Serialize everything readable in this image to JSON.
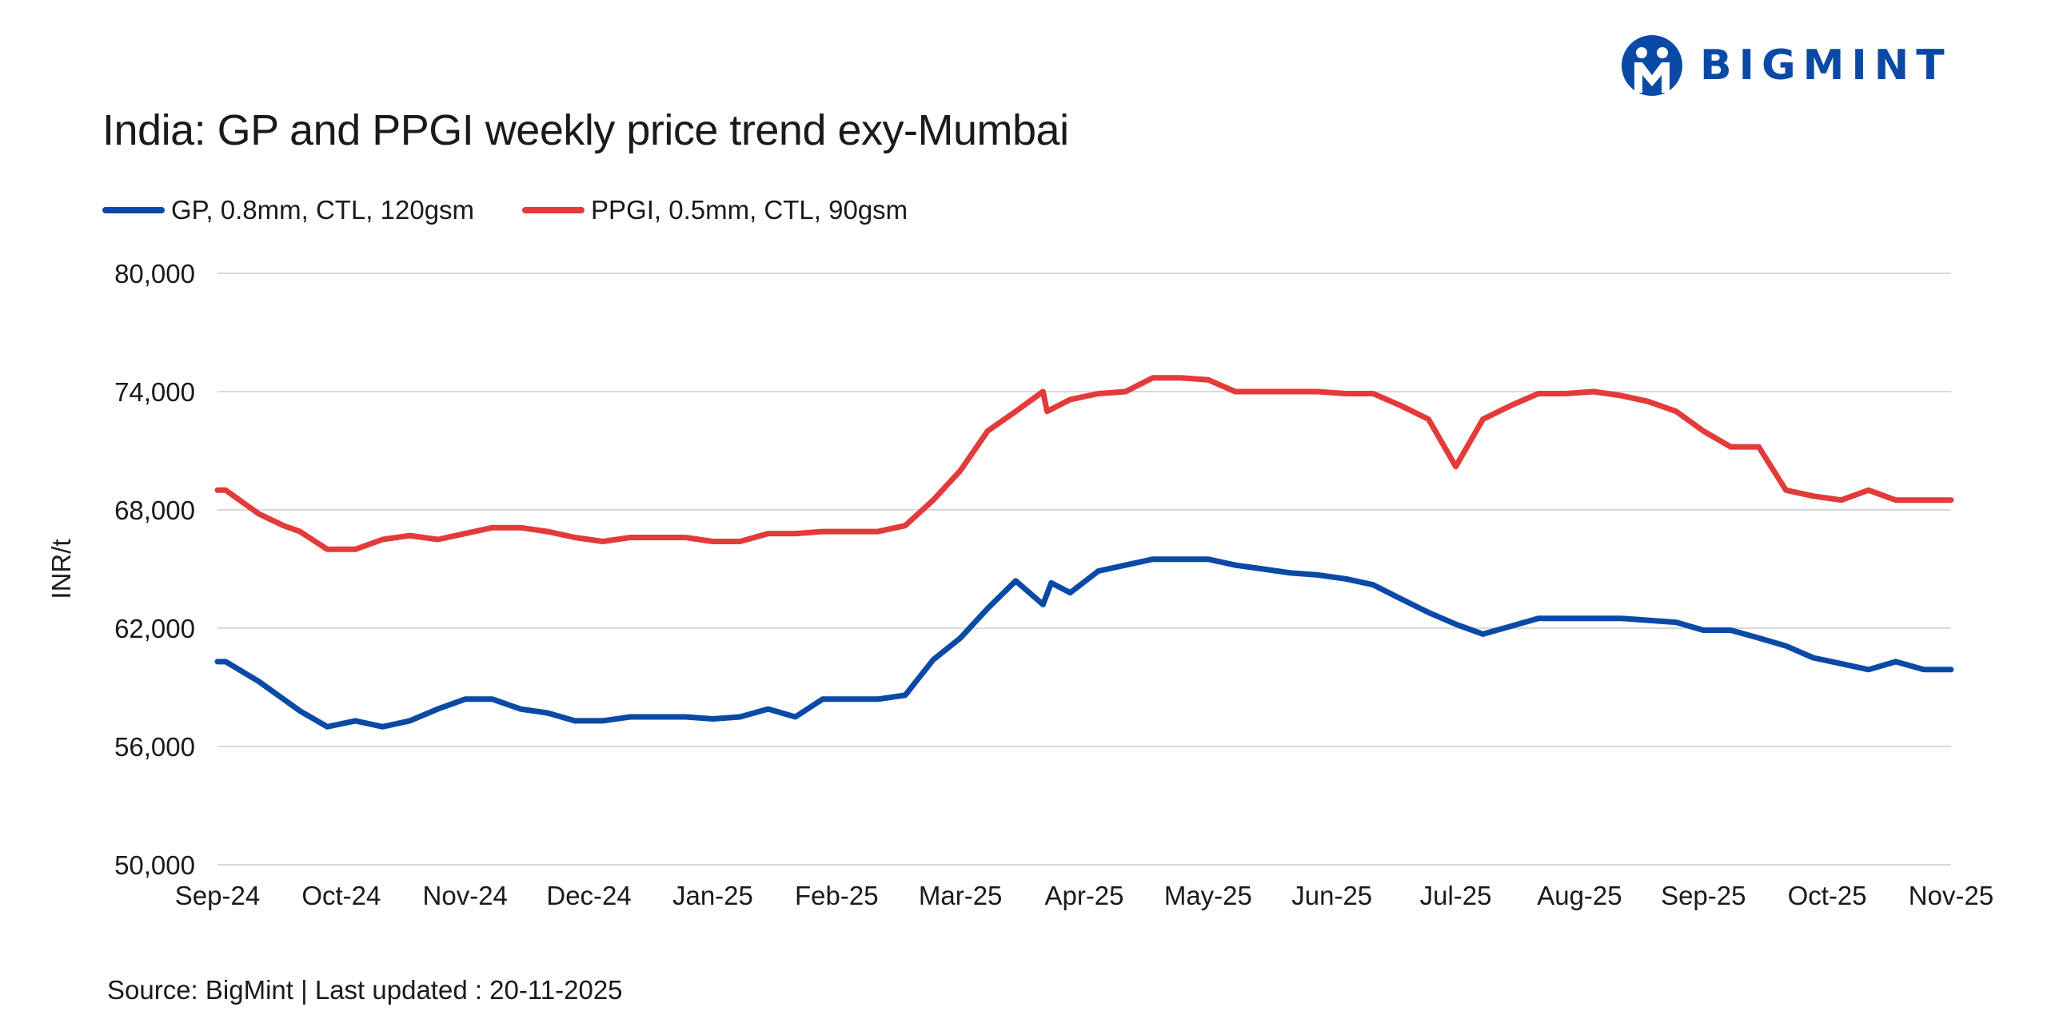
{
  "brand": {
    "name": "BIGMINT",
    "color": "#0a4aa6"
  },
  "footer": {
    "source": "Source: BigMint | Last updated : 20-11-2025"
  },
  "chart_data": {
    "type": "line",
    "title": "India: GP and PPGI weekly price trend exy-Mumbai",
    "ylabel": "INR/t",
    "xlabel": "",
    "ylim": [
      50000,
      80000
    ],
    "yticks": [
      50000,
      56000,
      62000,
      68000,
      74000,
      80000
    ],
    "ytick_labels": [
      "50,000",
      "56,000",
      "62,000",
      "68,000",
      "74,000",
      "80,000"
    ],
    "xtick_labels": [
      "Sep-24",
      "Oct-24",
      "Nov-24",
      "Dec-24",
      "Jan-25",
      "Feb-25",
      "Mar-25",
      "Apr-25",
      "May-25",
      "Jun-25",
      "Jul-25",
      "Aug-25",
      "Sep-25",
      "Oct-25",
      "Nov-25"
    ],
    "grid": true,
    "legend_position": "top-left",
    "series": [
      {
        "name": "GP, 0.8mm, CTL, 120gsm",
        "color": "#0a4aa6",
        "values": [
          [
            0.0,
            60300
          ],
          [
            0.1,
            60300
          ],
          [
            0.5,
            59300
          ],
          [
            0.8,
            58400
          ],
          [
            1.0,
            57800
          ],
          [
            1.33,
            57000
          ],
          [
            1.67,
            57300
          ],
          [
            2.0,
            57000
          ],
          [
            2.33,
            57300
          ],
          [
            2.67,
            57900
          ],
          [
            3.0,
            58400
          ],
          [
            3.33,
            58400
          ],
          [
            3.67,
            57900
          ],
          [
            4.0,
            57700
          ],
          [
            4.33,
            57300
          ],
          [
            4.67,
            57300
          ],
          [
            5.0,
            57500
          ],
          [
            5.33,
            57500
          ],
          [
            5.67,
            57500
          ],
          [
            6.0,
            57400
          ],
          [
            6.33,
            57500
          ],
          [
            6.67,
            57900
          ],
          [
            7.0,
            57500
          ],
          [
            7.33,
            58400
          ],
          [
            7.67,
            58400
          ],
          [
            8.0,
            58400
          ],
          [
            8.33,
            58600
          ],
          [
            8.67,
            60400
          ],
          [
            9.0,
            61500
          ],
          [
            9.33,
            63000
          ],
          [
            9.67,
            64400
          ],
          [
            10.0,
            63200
          ],
          [
            10.1,
            64300
          ],
          [
            10.33,
            63800
          ],
          [
            10.67,
            64900
          ],
          [
            11.0,
            65200
          ],
          [
            11.33,
            65500
          ],
          [
            11.67,
            65500
          ],
          [
            12.0,
            65500
          ],
          [
            12.33,
            65200
          ],
          [
            12.67,
            65000
          ],
          [
            13.0,
            64800
          ],
          [
            13.33,
            64700
          ],
          [
            13.67,
            64500
          ],
          [
            14.0,
            64200
          ],
          [
            14.33,
            63500
          ],
          [
            14.67,
            62800
          ],
          [
            15.0,
            62200
          ],
          [
            15.33,
            61700
          ],
          [
            15.67,
            62100
          ],
          [
            16.0,
            62500
          ],
          [
            16.33,
            62500
          ],
          [
            16.67,
            62500
          ],
          [
            17.0,
            62500
          ],
          [
            17.33,
            62400
          ],
          [
            17.67,
            62300
          ],
          [
            18.0,
            61900
          ],
          [
            18.33,
            61900
          ],
          [
            18.67,
            61500
          ],
          [
            19.0,
            61100
          ],
          [
            19.33,
            60500
          ],
          [
            19.67,
            60200
          ],
          [
            20.0,
            59900
          ],
          [
            20.33,
            60300
          ],
          [
            20.67,
            59900
          ],
          [
            21.0,
            59900
          ]
        ]
      },
      {
        "name": "PPGI, 0.5mm, CTL, 90gsm",
        "color": "#e33a3a",
        "values": [
          [
            0.0,
            69000
          ],
          [
            0.1,
            69000
          ],
          [
            0.5,
            67800
          ],
          [
            0.8,
            67200
          ],
          [
            1.0,
            66900
          ],
          [
            1.33,
            66000
          ],
          [
            1.67,
            66000
          ],
          [
            2.0,
            66500
          ],
          [
            2.33,
            66700
          ],
          [
            2.67,
            66500
          ],
          [
            3.0,
            66800
          ],
          [
            3.33,
            67100
          ],
          [
            3.67,
            67100
          ],
          [
            4.0,
            66900
          ],
          [
            4.33,
            66600
          ],
          [
            4.67,
            66400
          ],
          [
            5.0,
            66600
          ],
          [
            5.33,
            66600
          ],
          [
            5.67,
            66600
          ],
          [
            6.0,
            66400
          ],
          [
            6.33,
            66400
          ],
          [
            6.67,
            66800
          ],
          [
            7.0,
            66800
          ],
          [
            7.33,
            66900
          ],
          [
            7.67,
            66900
          ],
          [
            8.0,
            66900
          ],
          [
            8.33,
            67200
          ],
          [
            8.67,
            68500
          ],
          [
            9.0,
            70000
          ],
          [
            9.33,
            72000
          ],
          [
            9.67,
            73000
          ],
          [
            10.0,
            74000
          ],
          [
            10.05,
            73000
          ],
          [
            10.33,
            73600
          ],
          [
            10.67,
            73900
          ],
          [
            11.0,
            74000
          ],
          [
            11.33,
            74700
          ],
          [
            11.67,
            74700
          ],
          [
            12.0,
            74600
          ],
          [
            12.33,
            74000
          ],
          [
            12.67,
            74000
          ],
          [
            13.0,
            74000
          ],
          [
            13.33,
            74000
          ],
          [
            13.67,
            73900
          ],
          [
            14.0,
            73900
          ],
          [
            14.33,
            73300
          ],
          [
            14.67,
            72600
          ],
          [
            15.0,
            70200
          ],
          [
            15.33,
            72600
          ],
          [
            15.67,
            73300
          ],
          [
            16.0,
            73900
          ],
          [
            16.33,
            73900
          ],
          [
            16.67,
            74000
          ],
          [
            17.0,
            73800
          ],
          [
            17.33,
            73500
          ],
          [
            17.67,
            73000
          ],
          [
            18.0,
            72000
          ],
          [
            18.33,
            71200
          ],
          [
            18.67,
            71200
          ],
          [
            19.0,
            69000
          ],
          [
            19.33,
            68700
          ],
          [
            19.67,
            68500
          ],
          [
            20.0,
            69000
          ],
          [
            20.33,
            68500
          ],
          [
            20.67,
            68500
          ],
          [
            21.0,
            68500
          ]
        ]
      }
    ]
  }
}
